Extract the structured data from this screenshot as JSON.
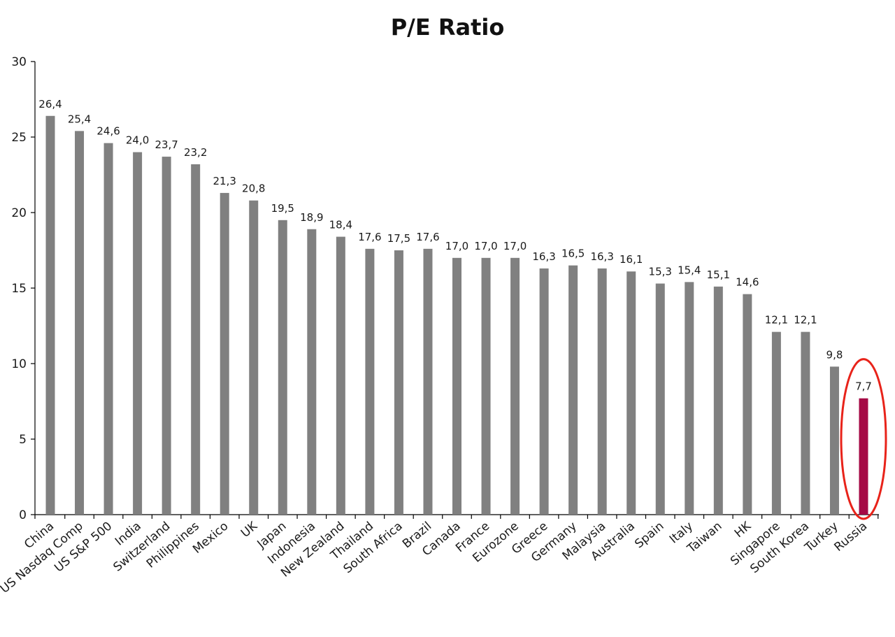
{
  "chart_data": {
    "type": "bar",
    "title": "P/E Ratio",
    "xlabel": "",
    "ylabel": "",
    "ylim": [
      0,
      30
    ],
    "yticks": [
      "0",
      "5",
      "10",
      "15",
      "20",
      "25",
      "30"
    ],
    "grid": false,
    "legend": "none",
    "categories": [
      "China",
      "US Nasdaq Comp",
      "US S&P 500",
      "India",
      "Switzerland",
      "Philippines",
      "Mexico",
      "UK",
      "Japan",
      "Indonesia",
      "New Zealand",
      "Thailand",
      "South Africa",
      "Brazil",
      "Canada",
      "France",
      "Eurozone",
      "Greece",
      "Germany",
      "Malaysia",
      "Australia",
      "Spain",
      "Italy",
      "Taiwan",
      "HK",
      "Singapore",
      "South Korea",
      "Turkey",
      "Russia"
    ],
    "values": [
      26.4,
      25.4,
      24.6,
      24.0,
      23.7,
      23.2,
      21.3,
      20.8,
      19.5,
      18.9,
      18.4,
      17.6,
      17.5,
      17.6,
      17.0,
      17.0,
      17.0,
      16.3,
      16.5,
      16.3,
      16.1,
      15.3,
      15.4,
      15.1,
      14.6,
      12.1,
      12.1,
      9.8,
      7.7
    ],
    "value_labels": [
      "26,4",
      "25,4",
      "24,6",
      "24,0",
      "23,7",
      "23,2",
      "21,3",
      "20,8",
      "19,5",
      "18,9",
      "18,4",
      "17,6",
      "17,5",
      "17,6",
      "17,0",
      "17,0",
      "17,0",
      "16,3",
      "16,5",
      "16,3",
      "16,1",
      "15,3",
      "15,4",
      "15,1",
      "14,6",
      "12,1",
      "12,1",
      "9,8",
      "7,7"
    ],
    "colors": {
      "bar": "#808080",
      "highlight_bar": "#a50a45",
      "highlight_circle": "#e8231a",
      "axis": "#000000"
    },
    "highlight": "Russia"
  }
}
